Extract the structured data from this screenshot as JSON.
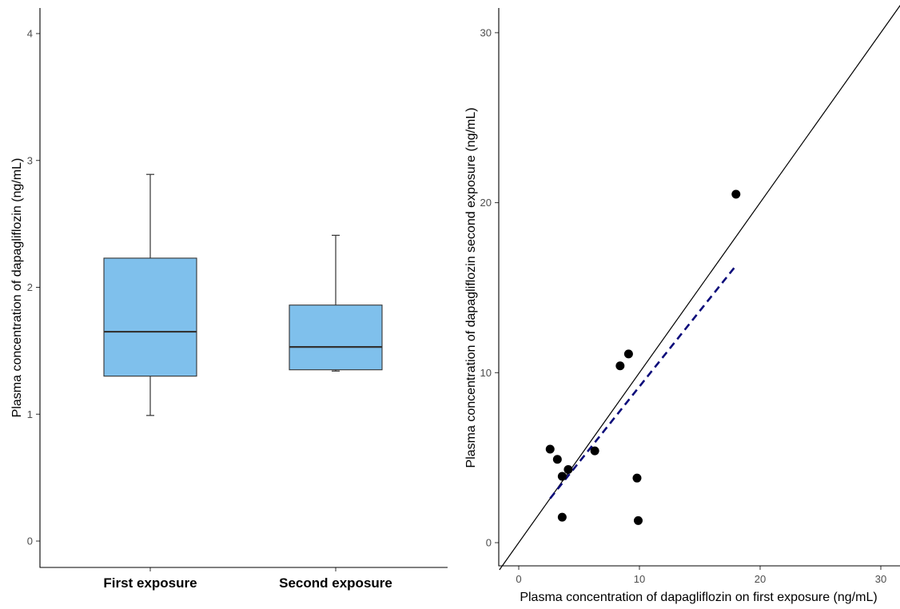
{
  "colors": {
    "box_fill": "#7fc0ec",
    "box_stroke": "#333333",
    "point": "#000000",
    "identity_line": "#000000",
    "regression_line": "#0a0a7a"
  },
  "chart_data": [
    {
      "type": "box",
      "title": "",
      "xlabel": "",
      "ylabel": "Plasma concentration of dapagliflozin (ng/mL)",
      "ylim": [
        0,
        4
      ],
      "yticks": [
        0,
        1,
        2,
        3,
        4
      ],
      "categories": [
        "First exposure",
        "Second exposure"
      ],
      "boxes": [
        {
          "category": "First exposure",
          "whisker_low": 0.99,
          "q1": 1.3,
          "median": 1.65,
          "q3": 2.23,
          "whisker_high": 2.89
        },
        {
          "category": "Second exposure",
          "whisker_low": 1.34,
          "q1": 1.35,
          "median": 1.53,
          "q3": 1.86,
          "whisker_high": 2.41
        }
      ],
      "grid": false
    },
    {
      "type": "scatter",
      "title": "",
      "xlabel": "Plasma concentration of dapagliflozin on first exposure (ng/mL)",
      "ylabel": "Plasma concentration of dapagliflozin second exposure (ng/mL)",
      "xlim": [
        0,
        30
      ],
      "ylim": [
        0,
        30
      ],
      "xticks": [
        0,
        10,
        20,
        30
      ],
      "yticks": [
        0,
        10,
        20,
        30
      ],
      "points": [
        {
          "x": 2.6,
          "y": 5.5
        },
        {
          "x": 3.2,
          "y": 4.9
        },
        {
          "x": 3.6,
          "y": 3.9
        },
        {
          "x": 3.6,
          "y": 1.5
        },
        {
          "x": 4.1,
          "y": 4.3
        },
        {
          "x": 6.3,
          "y": 5.4
        },
        {
          "x": 8.4,
          "y": 10.4
        },
        {
          "x": 9.1,
          "y": 11.1
        },
        {
          "x": 9.8,
          "y": 3.8
        },
        {
          "x": 9.9,
          "y": 1.3
        },
        {
          "x": 18.0,
          "y": 20.5
        }
      ],
      "identity_line": {
        "from": [
          -1.6,
          -1.6
        ],
        "to": [
          32.2,
          32.2
        ]
      },
      "regression_line": {
        "from": [
          2.6,
          2.6
        ],
        "to": [
          18.0,
          16.3
        ],
        "style": "dashed"
      },
      "grid": false
    }
  ]
}
